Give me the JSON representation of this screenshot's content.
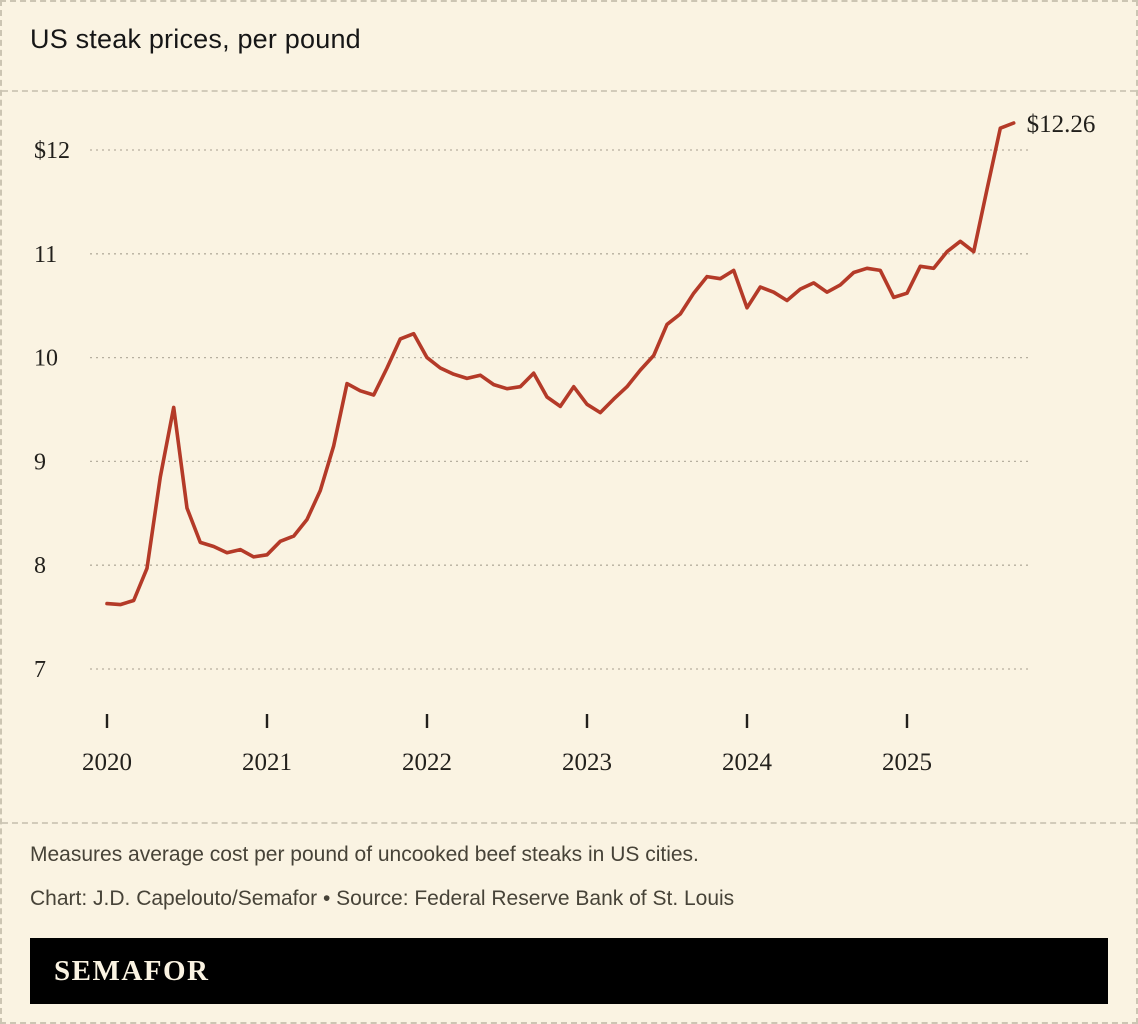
{
  "page": {
    "background": "#faf3e2",
    "title": "US steak prices, per pound"
  },
  "chart_data": {
    "type": "line",
    "title": "US steak prices, per pound",
    "series_name": "Average US steak price per pound",
    "line_color": "#b43a28",
    "grid": "dashed-horizontal",
    "legend": "none",
    "ylim": [
      6.75,
      12.55
    ],
    "y_ticks": [
      7,
      8,
      9,
      10,
      11,
      12
    ],
    "y_tick_labels": [
      "7",
      "8",
      "9",
      "10",
      "11",
      "$12"
    ],
    "x_tick_labels": [
      "2020",
      "2021",
      "2022",
      "2023",
      "2024",
      "2025"
    ],
    "end_label": "$12.26",
    "x": [
      "2020-01",
      "2020-02",
      "2020-03",
      "2020-04",
      "2020-05",
      "2020-06",
      "2020-07",
      "2020-08",
      "2020-09",
      "2020-10",
      "2020-11",
      "2020-12",
      "2021-01",
      "2021-02",
      "2021-03",
      "2021-04",
      "2021-05",
      "2021-06",
      "2021-07",
      "2021-08",
      "2021-09",
      "2021-10",
      "2021-11",
      "2021-12",
      "2022-01",
      "2022-02",
      "2022-03",
      "2022-04",
      "2022-05",
      "2022-06",
      "2022-07",
      "2022-08",
      "2022-09",
      "2022-10",
      "2022-11",
      "2022-12",
      "2023-01",
      "2023-02",
      "2023-03",
      "2023-04",
      "2023-05",
      "2023-06",
      "2023-07",
      "2023-08",
      "2023-09",
      "2023-10",
      "2023-11",
      "2023-12",
      "2024-01",
      "2024-02",
      "2024-03",
      "2024-04",
      "2024-05",
      "2024-06",
      "2024-07",
      "2024-08",
      "2024-09",
      "2024-10",
      "2024-11",
      "2024-12",
      "2025-01",
      "2025-02",
      "2025-03",
      "2025-04",
      "2025-05",
      "2025-06",
      "2025-07",
      "2025-08",
      "2025-09"
    ],
    "values": [
      7.63,
      7.62,
      7.66,
      7.97,
      8.85,
      9.52,
      8.55,
      8.22,
      8.18,
      8.12,
      8.15,
      8.08,
      8.1,
      8.23,
      8.28,
      8.44,
      8.72,
      9.15,
      9.75,
      9.68,
      9.64,
      9.9,
      10.18,
      10.23,
      10.0,
      9.9,
      9.84,
      9.8,
      9.83,
      9.74,
      9.7,
      9.72,
      9.85,
      9.62,
      9.53,
      9.72,
      9.55,
      9.47,
      9.6,
      9.72,
      9.88,
      10.02,
      10.32,
      10.42,
      10.62,
      10.78,
      10.76,
      10.84,
      10.48,
      10.68,
      10.63,
      10.55,
      10.66,
      10.72,
      10.63,
      10.7,
      10.82,
      10.86,
      10.84,
      10.58,
      10.62,
      10.88,
      10.86,
      11.02,
      11.12,
      11.02,
      11.62,
      12.21,
      12.26
    ]
  },
  "footer": {
    "note": "Measures average cost per pound of uncooked beef steaks in US cities.",
    "credit": "Chart: J.D. Capelouto/Semafor • Source: Federal Reserve Bank of St. Louis",
    "logo": "SEMAFOR"
  }
}
